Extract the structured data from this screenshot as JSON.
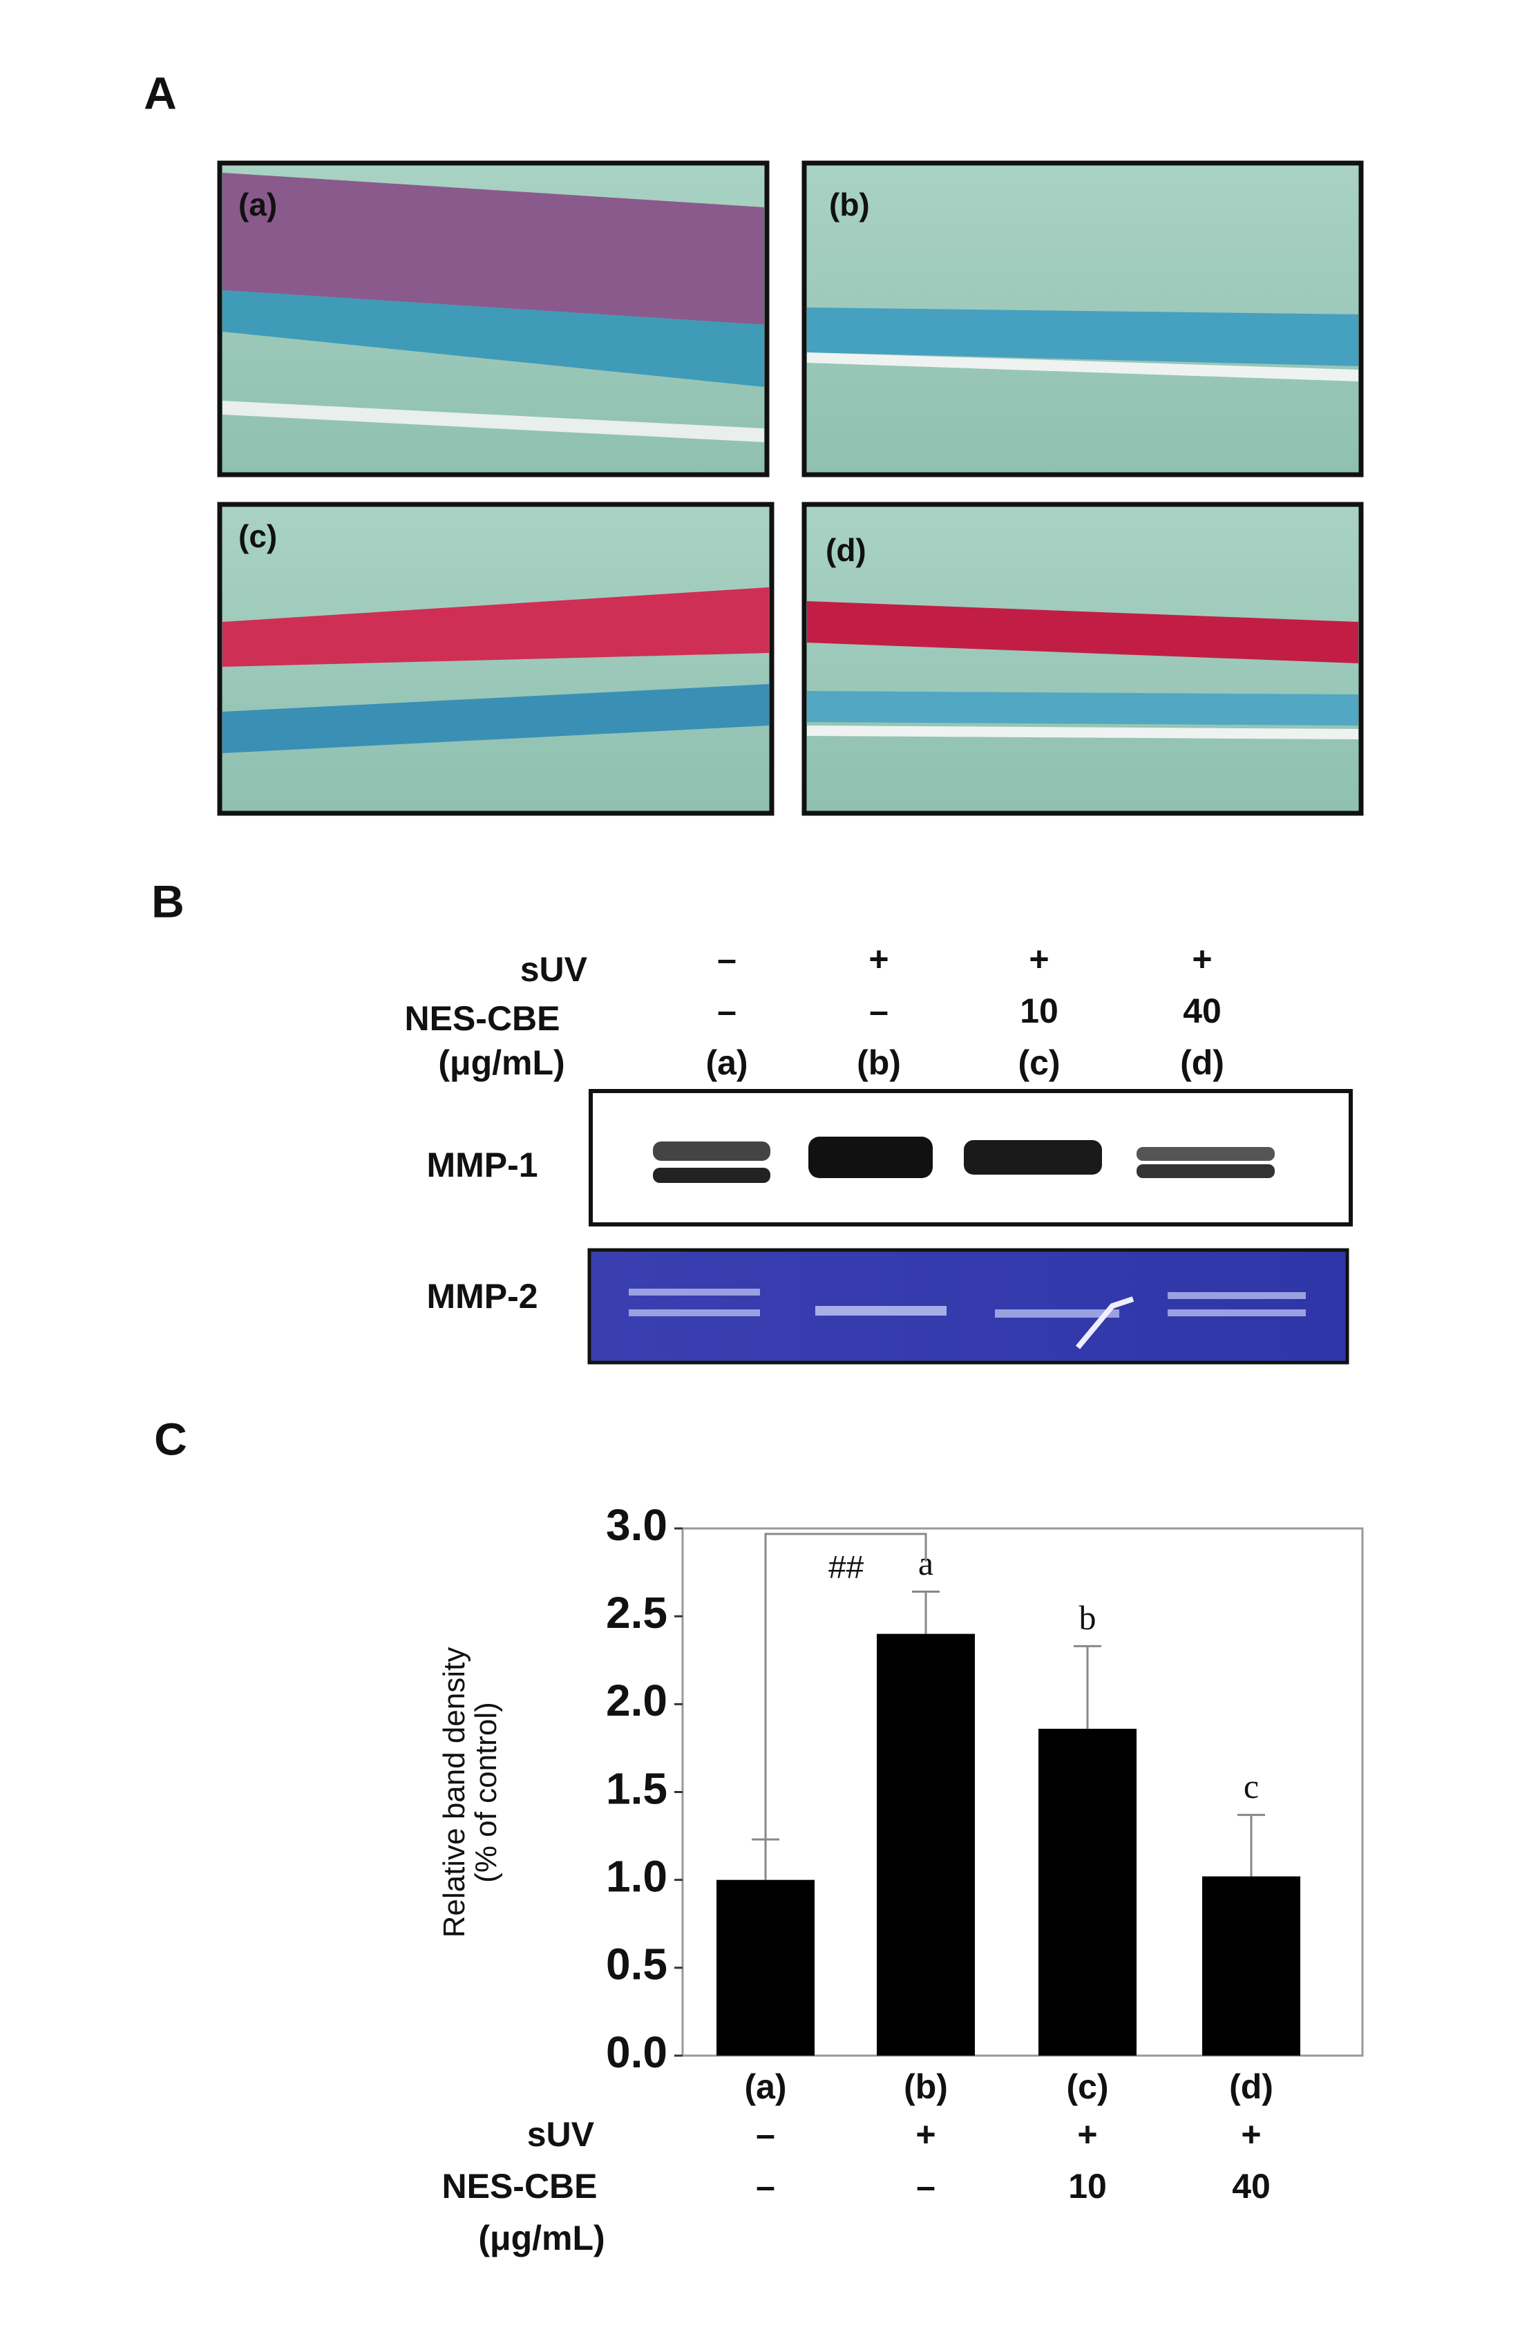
{
  "panel_a": {
    "label": "A",
    "images": [
      "(a)",
      "(b)",
      "(c)",
      "(d)"
    ]
  },
  "panel_b": {
    "label": "B",
    "row_labels": {
      "suv": "sUV",
      "nes": "NES-CBE",
      "unit": "(μg/mL)"
    },
    "suv": [
      "–",
      "+",
      "+",
      "+"
    ],
    "nes": [
      "–",
      "–",
      "10",
      "40"
    ],
    "lanes": [
      "(a)",
      "(b)",
      "(c)",
      "(d)"
    ],
    "blots": [
      "MMP-1",
      "MMP-2"
    ]
  },
  "panel_c": {
    "label": "C",
    "suv_label": "sUV",
    "nes_label": "NES-CBE",
    "unit": "(μg/mL)",
    "suv": [
      "–",
      "+",
      "+",
      "+"
    ],
    "nes": [
      "–",
      "–",
      "10",
      "40"
    ]
  },
  "chart_data": {
    "type": "bar",
    "ylabel": [
      "Relative band density",
      "(% of control)"
    ],
    "categories": [
      "(a)",
      "(b)",
      "(c)",
      "(d)"
    ],
    "values": [
      1.0,
      2.4,
      1.86,
      1.02
    ],
    "errors": [
      0.23,
      0.24,
      0.47,
      0.35
    ],
    "letters": [
      null,
      "a",
      "b",
      "c"
    ],
    "bracket_label": "##",
    "color": "#000000",
    "ylim": [
      0,
      3
    ],
    "yticks": [
      {
        "value": 0,
        "label": "0.0"
      },
      {
        "value": 0.5,
        "label": "0.5"
      },
      {
        "value": 1,
        "label": "1.0"
      },
      {
        "value": 1.5,
        "label": "1.5"
      },
      {
        "value": 2,
        "label": "2.0"
      },
      {
        "value": 2.5,
        "label": "2.5"
      },
      {
        "value": 3,
        "label": "3.0"
      }
    ]
  }
}
